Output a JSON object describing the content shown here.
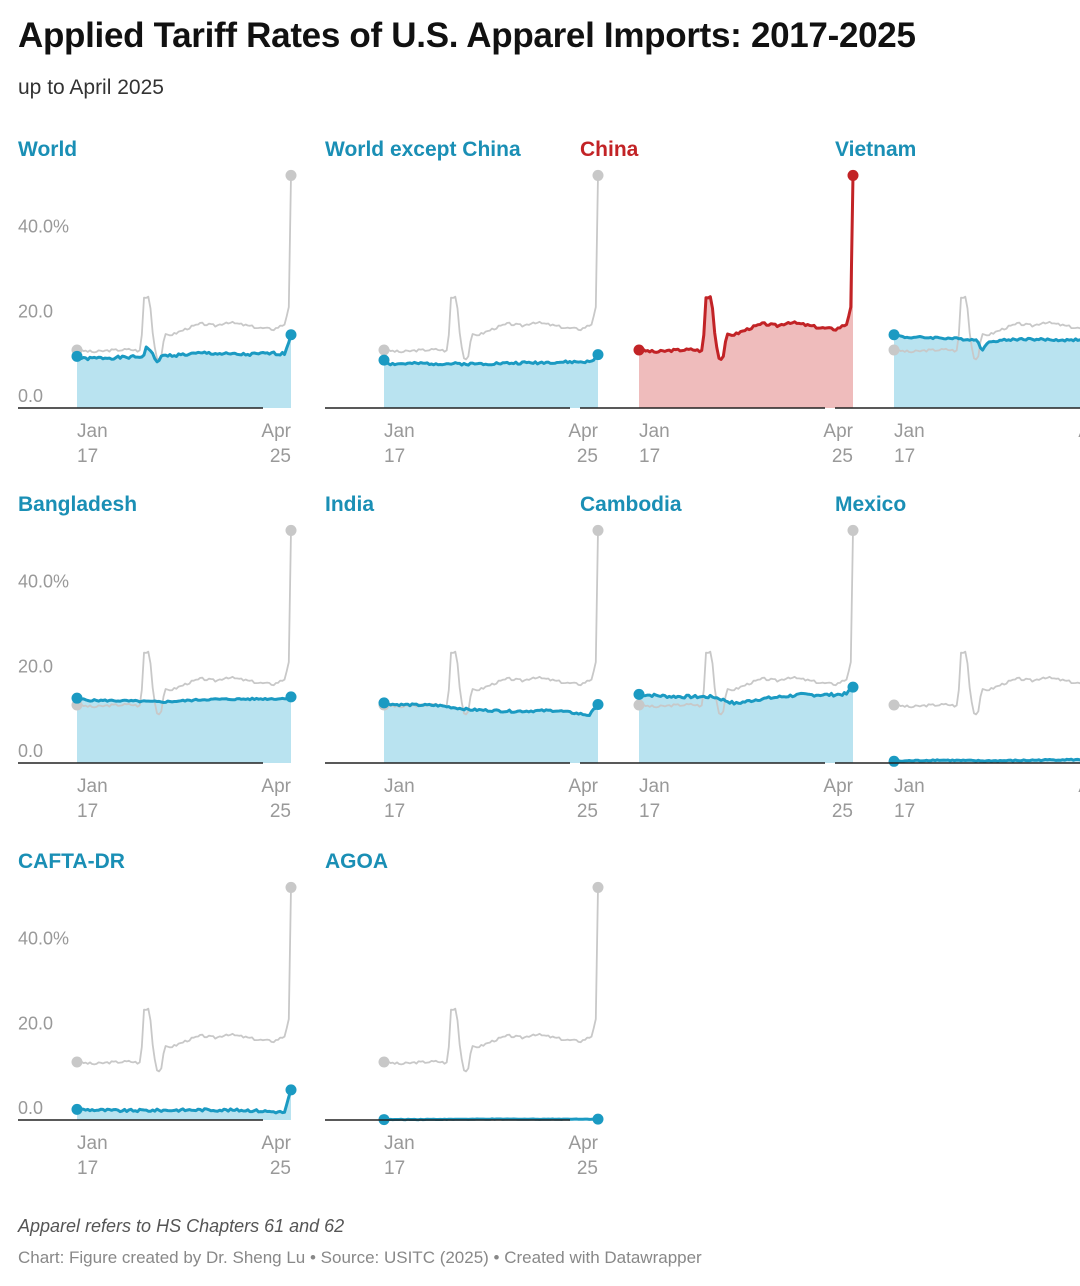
{
  "header": {
    "title": "Applied Tariff Rates of U.S. Apparel Imports: 2017-2025",
    "subtitle": "up to April 2025"
  },
  "footer": {
    "note": "Apparel refers to HS Chapters 61 and 62",
    "source": "Chart: Figure created by Dr. Sheng Lu • Source: USITC (2025) • Created with Datawrapper"
  },
  "colors": {
    "highlight_line": "#1b9ac2",
    "highlight_fill": "#b9e3f0",
    "china_line": "#c22326",
    "china_fill": "#efbcbc",
    "reference_line": "#c8c8c8",
    "title_blue": "#1a8fb5",
    "title_red": "#c22326",
    "axis_text": "#999999"
  },
  "chart_data": {
    "type": "area",
    "layout": "small multiples",
    "x_range": [
      "Jan 2017",
      "Apr 2025"
    ],
    "x_tick_labels": [
      [
        "Jan",
        "17"
      ],
      [
        "Apr",
        "25"
      ]
    ],
    "y_tick_labels": [
      "40.0%",
      "20.0",
      "0.0"
    ],
    "ylim": [
      0,
      55
    ],
    "reference_series": "China",
    "points_per_series": 100,
    "series": [
      {
        "name": "World",
        "color": "blue",
        "knots": [
          [
            0,
            12.2
          ],
          [
            3,
            11.6
          ],
          [
            10,
            11.8
          ],
          [
            20,
            11.9
          ],
          [
            31,
            12.1
          ],
          [
            32,
            14.2
          ],
          [
            34,
            14.0
          ],
          [
            37,
            10.8
          ],
          [
            40,
            12.3
          ],
          [
            50,
            12.6
          ],
          [
            60,
            13.0
          ],
          [
            70,
            12.7
          ],
          [
            80,
            12.6
          ],
          [
            90,
            12.9
          ],
          [
            97,
            12.8
          ],
          [
            100,
            17.3
          ]
        ],
        "noise": 0.35
      },
      {
        "name": "World except China",
        "color": "blue",
        "knots": [
          [
            0,
            11.3
          ],
          [
            3,
            10.4
          ],
          [
            20,
            10.5
          ],
          [
            40,
            10.4
          ],
          [
            60,
            10.6
          ],
          [
            80,
            10.8
          ],
          [
            97,
            10.9
          ],
          [
            100,
            12.6
          ]
        ],
        "noise": 0.3
      },
      {
        "name": "China",
        "color": "red",
        "knots": [
          [
            0,
            13.7
          ],
          [
            8,
            13.2
          ],
          [
            15,
            13.6
          ],
          [
            25,
            13.8
          ],
          [
            30,
            13.4
          ],
          [
            31,
            26.0
          ],
          [
            34,
            26.3
          ],
          [
            35,
            19.0
          ],
          [
            37,
            12.2
          ],
          [
            39,
            11.2
          ],
          [
            41,
            17.2
          ],
          [
            45,
            17.4
          ],
          [
            52,
            18.9
          ],
          [
            58,
            19.9
          ],
          [
            65,
            19.4
          ],
          [
            70,
            20.3
          ],
          [
            78,
            19.6
          ],
          [
            85,
            18.9
          ],
          [
            92,
            18.6
          ],
          [
            97,
            19.8
          ],
          [
            99,
            24.0
          ],
          [
            100,
            54.9
          ]
        ],
        "noise": 0.3
      },
      {
        "name": "Vietnam",
        "color": "blue",
        "knots": [
          [
            0,
            17.3
          ],
          [
            5,
            16.7
          ],
          [
            20,
            16.6
          ],
          [
            35,
            16.2
          ],
          [
            39,
            16.0
          ],
          [
            41,
            13.7
          ],
          [
            45,
            15.8
          ],
          [
            60,
            16.3
          ],
          [
            80,
            16.0
          ],
          [
            97,
            16.4
          ],
          [
            100,
            18.4
          ]
        ],
        "noise": 0.25
      },
      {
        "name": "Bangladesh",
        "color": "blue",
        "knots": [
          [
            0,
            15.3
          ],
          [
            5,
            14.8
          ],
          [
            20,
            14.7
          ],
          [
            40,
            14.4
          ],
          [
            60,
            15.0
          ],
          [
            80,
            15.1
          ],
          [
            97,
            15.2
          ],
          [
            100,
            15.6
          ]
        ],
        "noise": 0.2
      },
      {
        "name": "India",
        "color": "blue",
        "knots": [
          [
            0,
            14.2
          ],
          [
            5,
            13.8
          ],
          [
            25,
            13.6
          ],
          [
            40,
            12.6
          ],
          [
            60,
            12.2
          ],
          [
            80,
            12.4
          ],
          [
            96,
            11.3
          ],
          [
            100,
            13.8
          ]
        ],
        "noise": 0.25
      },
      {
        "name": "Cambodia",
        "color": "blue",
        "knots": [
          [
            0,
            16.2
          ],
          [
            15,
            15.7
          ],
          [
            35,
            15.6
          ],
          [
            45,
            14.0
          ],
          [
            55,
            15.0
          ],
          [
            75,
            16.1
          ],
          [
            90,
            16.1
          ],
          [
            97,
            16.3
          ],
          [
            100,
            17.9
          ]
        ],
        "noise": 0.35
      },
      {
        "name": "Mexico",
        "color": "blue",
        "knots": [
          [
            0,
            0.4
          ],
          [
            20,
            0.7
          ],
          [
            40,
            0.5
          ],
          [
            60,
            0.6
          ],
          [
            80,
            0.8
          ],
          [
            97,
            0.7
          ],
          [
            100,
            1.6
          ]
        ],
        "noise": 0.15
      },
      {
        "name": "CAFTA-DR",
        "color": "blue",
        "knots": [
          [
            0,
            2.5
          ],
          [
            20,
            2.2
          ],
          [
            40,
            2.3
          ],
          [
            60,
            2.4
          ],
          [
            80,
            2.3
          ],
          [
            97,
            1.8
          ],
          [
            100,
            7.1
          ]
        ],
        "noise": 0.3
      },
      {
        "name": "AGOA",
        "color": "blue",
        "knots": [
          [
            0,
            0.1
          ],
          [
            50,
            0.2
          ],
          [
            100,
            0.2
          ]
        ],
        "noise": 0.05
      }
    ]
  }
}
